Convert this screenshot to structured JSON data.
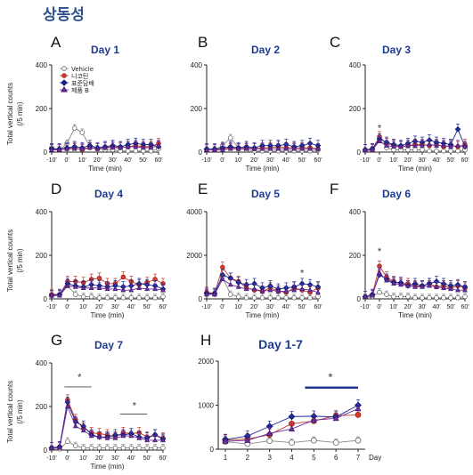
{
  "page_title": "상동성",
  "y_axis_label_line1": "Total vertical counts",
  "y_axis_label_line2": "(/5 min)",
  "colors": {
    "title": "#2f4f8f",
    "day_title": "#1f3a93",
    "vehicle": "#ffffff",
    "nicotine": "#e0392b",
    "standard_tobacco": "#1a2a9c",
    "product_b": "#6b2fa0",
    "asterisk": "#333333"
  },
  "legend": [
    "Vehicle",
    "니코틴",
    "표준담배",
    "제품 B"
  ],
  "chart_data": [
    {
      "type": "line",
      "panel": "A",
      "title": "Day 1",
      "xlabel": "Time (min)",
      "ylabel": "Total vertical counts (/5 min)",
      "categories": [
        "-10'",
        "0'",
        "10'",
        "20'",
        "30'",
        "40'",
        "50'",
        "60'"
      ],
      "x": [
        -10,
        -5,
        0,
        5,
        10,
        15,
        20,
        25,
        30,
        35,
        40,
        45,
        50,
        55,
        60
      ],
      "ylim": [
        0,
        400
      ],
      "yticks": [
        0,
        200,
        400
      ],
      "legend_position": "top-left",
      "series": [
        {
          "name": "Vehicle",
          "values": [
            20,
            10,
            40,
            110,
            90,
            25,
            15,
            10,
            10,
            5,
            5,
            5,
            5,
            5,
            15
          ]
        },
        {
          "name": "니코틴",
          "values": [
            15,
            10,
            15,
            20,
            10,
            20,
            15,
            20,
            25,
            20,
            25,
            30,
            25,
            25,
            40
          ]
        },
        {
          "name": "표준담배",
          "values": [
            15,
            15,
            20,
            25,
            20,
            30,
            20,
            25,
            30,
            25,
            35,
            40,
            35,
            35,
            25
          ]
        },
        {
          "name": "제품 B",
          "values": [
            10,
            10,
            15,
            15,
            15,
            20,
            15,
            20,
            20,
            20,
            25,
            25,
            20,
            20,
            30
          ]
        }
      ]
    },
    {
      "type": "line",
      "panel": "B",
      "title": "Day 2",
      "xlabel": "Time (min)",
      "categories": [
        "-10'",
        "0'",
        "10'",
        "20'",
        "30'",
        "40'",
        "50'",
        "60'"
      ],
      "x": [
        -10,
        -5,
        0,
        5,
        10,
        15,
        20,
        25,
        30,
        35,
        40,
        45,
        50,
        55,
        60
      ],
      "ylim": [
        0,
        400
      ],
      "yticks": [
        0,
        200,
        400
      ],
      "series": [
        {
          "name": "Vehicle",
          "values": [
            10,
            10,
            30,
            65,
            20,
            10,
            5,
            5,
            5,
            5,
            5,
            5,
            5,
            5,
            10
          ]
        },
        {
          "name": "니코틴",
          "values": [
            10,
            10,
            15,
            20,
            15,
            20,
            15,
            20,
            20,
            25,
            20,
            20,
            20,
            20,
            15
          ]
        },
        {
          "name": "표준담배",
          "values": [
            15,
            15,
            20,
            25,
            20,
            25,
            20,
            30,
            30,
            30,
            35,
            25,
            30,
            40,
            30
          ]
        },
        {
          "name": "제품 B",
          "values": [
            10,
            10,
            10,
            15,
            15,
            15,
            15,
            15,
            15,
            15,
            15,
            15,
            15,
            15,
            15
          ]
        }
      ]
    },
    {
      "type": "line",
      "panel": "C",
      "title": "Day 3",
      "xlabel": "Time (min)",
      "categories": [
        "-10'",
        "0'",
        "10'",
        "20'",
        "30'",
        "40'",
        "50'",
        "60'"
      ],
      "x": [
        -10,
        -5,
        0,
        5,
        10,
        15,
        20,
        25,
        30,
        35,
        40,
        45,
        50,
        55,
        60
      ],
      "ylim": [
        0,
        400
      ],
      "yticks": [
        0,
        200,
        400
      ],
      "annotations": [
        {
          "text": "*",
          "x": 0,
          "y": 95
        }
      ],
      "series": [
        {
          "name": "Vehicle",
          "values": [
            5,
            10,
            60,
            20,
            10,
            10,
            10,
            10,
            10,
            5,
            5,
            5,
            5,
            5,
            10
          ]
        },
        {
          "name": "니코틴",
          "values": [
            10,
            15,
            70,
            40,
            30,
            25,
            30,
            35,
            35,
            30,
            35,
            25,
            30,
            25,
            35
          ]
        },
        {
          "name": "표준담배",
          "values": [
            10,
            15,
            60,
            45,
            35,
            30,
            40,
            50,
            45,
            55,
            45,
            40,
            35,
            105,
            25
          ]
        },
        {
          "name": "제품 B",
          "values": [
            10,
            10,
            50,
            30,
            25,
            25,
            30,
            30,
            30,
            35,
            30,
            30,
            25,
            30,
            25
          ]
        }
      ]
    },
    {
      "type": "line",
      "panel": "D",
      "title": "Day 4",
      "xlabel": "Time (min)",
      "categories": [
        "-10'",
        "0'",
        "10'",
        "20'",
        "30'",
        "40'",
        "50'",
        "60'"
      ],
      "x": [
        -10,
        -5,
        0,
        5,
        10,
        15,
        20,
        25,
        30,
        35,
        40,
        45,
        50,
        55,
        60
      ],
      "ylim": [
        0,
        400
      ],
      "yticks": [
        0,
        200,
        400
      ],
      "series": [
        {
          "name": "Vehicle",
          "values": [
            20,
            20,
            60,
            20,
            10,
            10,
            5,
            5,
            5,
            5,
            5,
            5,
            5,
            5,
            10
          ]
        },
        {
          "name": "니코틴",
          "values": [
            20,
            20,
            80,
            80,
            75,
            90,
            95,
            70,
            70,
            100,
            80,
            65,
            75,
            90,
            70
          ]
        },
        {
          "name": "표준담배",
          "values": [
            15,
            20,
            70,
            60,
            55,
            65,
            60,
            55,
            60,
            55,
            60,
            70,
            65,
            60,
            45
          ]
        },
        {
          "name": "제품 B",
          "values": [
            15,
            15,
            60,
            55,
            50,
            50,
            50,
            45,
            45,
            40,
            40,
            50,
            45,
            45,
            40
          ]
        }
      ]
    },
    {
      "type": "line",
      "panel": "E",
      "title": "Day 5",
      "xlabel": "Time (min)",
      "categories": [
        "-10'",
        "0'",
        "10'",
        "20'",
        "30'",
        "40'",
        "50'",
        "60'"
      ],
      "x": [
        -10,
        -5,
        0,
        5,
        10,
        15,
        20,
        25,
        30,
        35,
        40,
        45,
        50,
        55,
        60
      ],
      "ylim": [
        0,
        4000
      ],
      "yticks": [
        0,
        2000,
        4000
      ],
      "annotations": [
        {
          "text": "*",
          "x": 50,
          "y": 1050
        }
      ],
      "series": [
        {
          "name": "Vehicle",
          "values": [
            250,
            200,
            1000,
            200,
            100,
            50,
            50,
            50,
            50,
            50,
            50,
            50,
            50,
            50,
            100
          ]
        },
        {
          "name": "니코틴",
          "values": [
            300,
            250,
            1450,
            950,
            800,
            500,
            400,
            350,
            500,
            350,
            300,
            500,
            400,
            300,
            500
          ]
        },
        {
          "name": "표준담배",
          "values": [
            250,
            250,
            1100,
            950,
            750,
            650,
            700,
            500,
            600,
            450,
            500,
            550,
            700,
            650,
            550
          ]
        },
        {
          "name": "제품 B",
          "values": [
            200,
            200,
            900,
            650,
            550,
            450,
            450,
            350,
            400,
            350,
            350,
            400,
            450,
            400,
            300
          ]
        }
      ]
    },
    {
      "type": "line",
      "panel": "F",
      "title": "Day 6",
      "xlabel": "Time (min)",
      "categories": [
        "-10'",
        "0'",
        "10'",
        "20'",
        "30'",
        "40'",
        "50'",
        "60'"
      ],
      "x": [
        -10,
        -5,
        0,
        5,
        10,
        15,
        20,
        25,
        30,
        35,
        40,
        45,
        50,
        55,
        60
      ],
      "ylim": [
        0,
        400
      ],
      "yticks": [
        0,
        200,
        400
      ],
      "annotations": [
        {
          "text": "*",
          "x": 0,
          "y": 205
        }
      ],
      "series": [
        {
          "name": "Vehicle",
          "values": [
            5,
            10,
            30,
            20,
            10,
            10,
            10,
            5,
            5,
            5,
            5,
            5,
            5,
            5,
            10
          ]
        },
        {
          "name": "니코틴",
          "values": [
            10,
            20,
            150,
            100,
            80,
            70,
            70,
            60,
            60,
            70,
            55,
            60,
            50,
            60,
            50
          ]
        },
        {
          "name": "표준담배",
          "values": [
            10,
            20,
            110,
            90,
            75,
            75,
            60,
            70,
            60,
            70,
            80,
            70,
            60,
            65,
            55
          ]
        },
        {
          "name": "제품 B",
          "values": [
            10,
            15,
            120,
            85,
            70,
            65,
            60,
            55,
            55,
            60,
            55,
            50,
            45,
            40,
            40
          ]
        }
      ]
    },
    {
      "type": "line",
      "panel": "G",
      "title": "Day 7",
      "xlabel": "Time (min)",
      "categories": [
        "-10'",
        "0'",
        "10'",
        "20'",
        "30'",
        "40'",
        "50'",
        "60'"
      ],
      "x": [
        -10,
        -5,
        0,
        5,
        10,
        15,
        20,
        25,
        30,
        35,
        40,
        45,
        50,
        55,
        60
      ],
      "ylim": [
        0,
        400
      ],
      "yticks": [
        0,
        200,
        400
      ],
      "annotations": [
        {
          "text": "*",
          "x": 7.5,
          "y": 320
        },
        {
          "text": "*",
          "x": 42,
          "y": 190
        }
      ],
      "series": [
        {
          "name": "Vehicle",
          "values": [
            5,
            5,
            40,
            20,
            10,
            10,
            10,
            10,
            10,
            10,
            10,
            10,
            10,
            10,
            10
          ]
        },
        {
          "name": "니코틴",
          "values": [
            10,
            15,
            230,
            140,
            100,
            80,
            75,
            70,
            60,
            80,
            75,
            80,
            60,
            70,
            55
          ]
        },
        {
          "name": "표준담배",
          "values": [
            10,
            15,
            220,
            130,
            110,
            70,
            60,
            60,
            70,
            70,
            75,
            60,
            55,
            70,
            50
          ]
        },
        {
          "name": "제품 B",
          "values": [
            10,
            10,
            200,
            110,
            90,
            65,
            60,
            55,
            55,
            65,
            65,
            55,
            45,
            45,
            45
          ]
        }
      ]
    },
    {
      "type": "line",
      "panel": "H",
      "title": "Day 1-7",
      "xlabel": "Day",
      "categories": [
        "1",
        "2",
        "3",
        "4",
        "5",
        "6",
        "7"
      ],
      "ylim": [
        0,
        2000
      ],
      "yticks": [
        0,
        1000,
        2000
      ],
      "annotations": [
        {
          "text": "*",
          "x": 5.75,
          "y": 1550
        }
      ],
      "series": [
        {
          "name": "Vehicle",
          "values": [
            170,
            120,
            190,
            150,
            200,
            150,
            200
          ]
        },
        {
          "name": "니코틴",
          "values": [
            210,
            230,
            330,
            580,
            640,
            760,
            780
          ]
        },
        {
          "name": "표준담배",
          "values": [
            220,
            300,
            520,
            740,
            750,
            730,
            1000
          ]
        },
        {
          "name": "제품 B",
          "values": [
            180,
            200,
            360,
            460,
            660,
            700,
            920
          ]
        }
      ]
    }
  ]
}
